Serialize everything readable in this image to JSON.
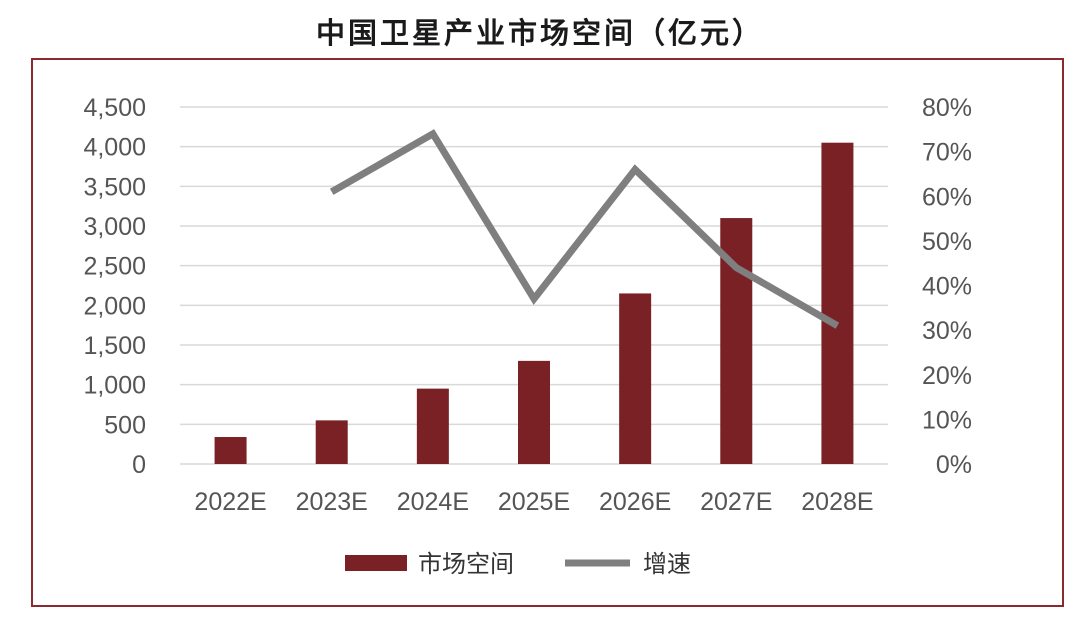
{
  "title": "中国卫星产业市场空间（亿元）",
  "colors": {
    "bar": "#7a2125",
    "line": "#7f7f7f",
    "frame": "#8b2a2e",
    "grid": "#d9d9d9"
  },
  "chart_data": {
    "type": "bar",
    "title": "中国卫星产业市场空间（亿元）",
    "categories": [
      "2022E",
      "2023E",
      "2024E",
      "2025E",
      "2026E",
      "2027E",
      "2028E"
    ],
    "series": [
      {
        "name": "市场空间",
        "type": "bar",
        "axis": "left",
        "values": [
          340,
          550,
          950,
          1300,
          2150,
          3100,
          4050
        ]
      },
      {
        "name": "增速",
        "type": "line",
        "axis": "right",
        "values": [
          null,
          61,
          74,
          37,
          66,
          44,
          31
        ]
      }
    ],
    "y_left": {
      "ylim": [
        0,
        4500
      ],
      "ticks": [
        0,
        500,
        1000,
        1500,
        2000,
        2500,
        3000,
        3500,
        4000,
        4500
      ],
      "tick_labels": [
        "0",
        "500",
        "1,000",
        "1,500",
        "2,000",
        "2,500",
        "3,000",
        "3,500",
        "4,000",
        "4,500"
      ]
    },
    "y_right": {
      "ylim": [
        0,
        80
      ],
      "ticks": [
        0,
        10,
        20,
        30,
        40,
        50,
        60,
        70,
        80
      ],
      "tick_labels": [
        "0%",
        "10%",
        "20%",
        "30%",
        "40%",
        "50%",
        "60%",
        "70%",
        "80%"
      ]
    },
    "grid": true,
    "legend": "bottom"
  }
}
